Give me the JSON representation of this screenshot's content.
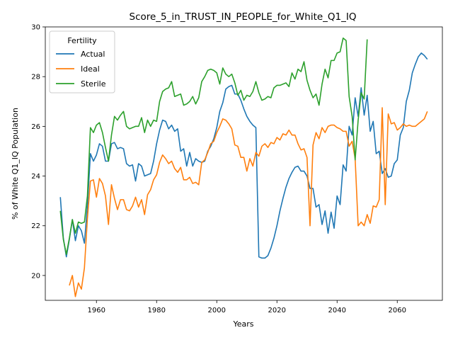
{
  "chart_data": {
    "type": "line",
    "title": "Score_5_in_TRUST_IN_PEOPLE_for_White_Q1_IQ",
    "xlabel": "Years",
    "ylabel": "% of White Q1_IQ Population",
    "xlim": [
      1943,
      2075
    ],
    "ylim": [
      19.0,
      30.0
    ],
    "xticks": [
      1960,
      1980,
      2000,
      2020,
      2040,
      2060
    ],
    "yticks": [
      20,
      22,
      24,
      26,
      28,
      30
    ],
    "grid": false,
    "legend": {
      "title": "Fertility",
      "placement": "top-left"
    },
    "series": [
      {
        "name": "Actual",
        "color": "#1f77b4",
        "x": [
          1948,
          1949,
          1950,
          1951,
          1952,
          1953,
          1954,
          1955,
          1956,
          1957,
          1958,
          1959,
          1960,
          1961,
          1962,
          1963,
          1964,
          1965,
          1966,
          1967,
          1968,
          1969,
          1970,
          1971,
          1972,
          1973,
          1974,
          1975,
          1976,
          1977,
          1978,
          1979,
          1980,
          1981,
          1982,
          1983,
          1984,
          1985,
          1986,
          1987,
          1988,
          1989,
          1990,
          1991,
          1992,
          1993,
          1994,
          1995,
          1996,
          1997,
          1998,
          1999,
          2000,
          2001,
          2002,
          2003,
          2004,
          2005,
          2006,
          2007,
          2008,
          2009,
          2010,
          2011,
          2012,
          2013,
          2014,
          2015,
          2016,
          2017,
          2018,
          2019,
          2020,
          2021,
          2022,
          2023,
          2024,
          2025,
          2026,
          2027,
          2028,
          2029,
          2030,
          2031,
          2032,
          2033,
          2034,
          2035,
          2036,
          2037,
          2038,
          2039,
          2040,
          2041,
          2042,
          2043,
          2044,
          2045,
          2046,
          2047,
          2048,
          2049,
          2050,
          2051,
          2052,
          2053,
          2054,
          2055,
          2056,
          2057,
          2058,
          2059,
          2060,
          2061,
          2062,
          2063,
          2064,
          2065,
          2066,
          2067,
          2068,
          2069,
          2070
        ],
        "values": [
          23.15,
          21.5,
          20.75,
          21.45,
          22.25,
          21.4,
          22.0,
          21.8,
          21.3,
          22.8,
          24.9,
          24.6,
          24.85,
          25.3,
          25.2,
          24.6,
          24.6,
          25.3,
          25.35,
          25.1,
          25.15,
          25.1,
          24.5,
          24.4,
          24.45,
          23.8,
          24.5,
          24.4,
          24.0,
          24.05,
          24.1,
          24.6,
          25.3,
          25.85,
          26.25,
          26.2,
          25.9,
          26.05,
          25.8,
          25.9,
          25.0,
          25.1,
          24.4,
          24.95,
          24.4,
          24.7,
          24.6,
          24.55,
          24.6,
          25.0,
          25.2,
          25.5,
          25.95,
          26.6,
          26.95,
          27.5,
          27.6,
          27.65,
          27.3,
          27.3,
          27.05,
          26.7,
          26.4,
          26.2,
          26.05,
          25.95,
          20.75,
          20.7,
          20.7,
          20.8,
          21.1,
          21.5,
          22.0,
          22.6,
          23.1,
          23.55,
          23.9,
          24.15,
          24.35,
          24.4,
          24.2,
          24.2,
          24.0,
          23.5,
          23.5,
          22.75,
          22.85,
          22.05,
          22.6,
          21.7,
          22.55,
          21.9,
          23.2,
          22.85,
          24.45,
          24.2,
          26.0,
          25.65,
          27.15,
          26.4,
          27.55,
          26.45,
          27.25,
          25.8,
          26.2,
          24.9,
          25.0,
          24.1,
          24.3,
          23.95,
          24.0,
          24.5,
          24.65,
          25.65,
          25.95,
          27.0,
          27.45,
          28.15,
          28.5,
          28.8,
          28.95,
          28.85,
          28.7
        ]
      },
      {
        "name": "Ideal",
        "color": "#ff7f0e",
        "x": [
          1951,
          1952,
          1953,
          1954,
          1955,
          1956,
          1957,
          1958,
          1959,
          1960,
          1961,
          1962,
          1963,
          1964,
          1965,
          1966,
          1967,
          1968,
          1969,
          1970,
          1971,
          1972,
          1973,
          1974,
          1975,
          1976,
          1977,
          1978,
          1979,
          1980,
          1981,
          1982,
          1983,
          1984,
          1985,
          1986,
          1987,
          1988,
          1989,
          1990,
          1991,
          1992,
          1993,
          1994,
          1995,
          1996,
          1997,
          1998,
          1999,
          2000,
          2001,
          2002,
          2003,
          2004,
          2005,
          2006,
          2007,
          2008,
          2009,
          2010,
          2011,
          2012,
          2013,
          2014,
          2015,
          2016,
          2017,
          2018,
          2019,
          2020,
          2021,
          2022,
          2023,
          2024,
          2025,
          2026,
          2027,
          2028,
          2029,
          2030,
          2031,
          2032,
          2033,
          2034,
          2035,
          2036,
          2037,
          2038,
          2039,
          2040,
          2041,
          2042,
          2043,
          2044,
          2045,
          2046,
          2047,
          2048,
          2049,
          2050,
          2051,
          2052,
          2053,
          2054,
          2055,
          2056,
          2057,
          2058,
          2059,
          2060,
          2061,
          2062,
          2063,
          2064,
          2065,
          2066,
          2067,
          2068,
          2069,
          2070
        ],
        "values": [
          19.6,
          20.0,
          19.15,
          19.7,
          19.45,
          20.3,
          22.3,
          23.8,
          23.85,
          23.15,
          23.9,
          23.7,
          23.2,
          22.05,
          23.65,
          23.1,
          22.65,
          23.05,
          23.05,
          22.65,
          22.6,
          22.8,
          23.15,
          22.75,
          23.05,
          22.45,
          23.25,
          23.45,
          23.85,
          24.05,
          24.55,
          24.85,
          24.7,
          24.5,
          24.6,
          24.3,
          24.15,
          24.35,
          23.85,
          23.85,
          23.95,
          23.7,
          23.75,
          23.65,
          24.55,
          24.65,
          24.95,
          25.3,
          25.4,
          25.75,
          26.0,
          26.3,
          26.25,
          26.1,
          25.9,
          25.25,
          25.2,
          24.75,
          24.75,
          24.2,
          24.7,
          24.4,
          24.95,
          24.8,
          25.2,
          25.3,
          25.15,
          25.35,
          25.3,
          25.55,
          25.45,
          25.7,
          25.65,
          25.85,
          25.65,
          25.65,
          25.3,
          25.05,
          25.1,
          24.75,
          22.0,
          25.25,
          25.75,
          25.5,
          25.95,
          25.75,
          26.0,
          26.05,
          26.05,
          25.95,
          25.9,
          25.8,
          25.8,
          25.2,
          25.4,
          24.7,
          22.0,
          22.15,
          22.0,
          22.45,
          22.1,
          22.8,
          22.75,
          23.05,
          26.75,
          22.85,
          26.5,
          26.1,
          26.15,
          25.85,
          25.95,
          26.1,
          26.0,
          26.05,
          26.0,
          26.0,
          26.1,
          26.2,
          26.3,
          26.6
        ]
      },
      {
        "name": "Sterile",
        "color": "#2ca02c",
        "x": [
          1948,
          1949,
          1950,
          1951,
          1952,
          1953,
          1954,
          1955,
          1956,
          1957,
          1958,
          1959,
          1960,
          1961,
          1962,
          1963,
          1964,
          1965,
          1966,
          1967,
          1968,
          1969,
          1970,
          1971,
          1972,
          1973,
          1974,
          1975,
          1976,
          1977,
          1978,
          1979,
          1980,
          1981,
          1982,
          1983,
          1984,
          1985,
          1986,
          1987,
          1988,
          1989,
          1990,
          1991,
          1992,
          1993,
          1994,
          1995,
          1996,
          1997,
          1998,
          1999,
          2000,
          2001,
          2002,
          2003,
          2004,
          2005,
          2006,
          2007,
          2008,
          2009,
          2010,
          2011,
          2012,
          2013,
          2014,
          2015,
          2016,
          2017,
          2018,
          2019,
          2020,
          2021,
          2022,
          2023,
          2024,
          2025,
          2026,
          2027,
          2028,
          2029,
          2030,
          2031,
          2032,
          2033,
          2034,
          2035,
          2036,
          2037,
          2038,
          2039,
          2040,
          2041,
          2042,
          2043,
          2044,
          2045,
          2046,
          2047,
          2048,
          2049,
          2050
        ],
        "values": [
          22.6,
          21.45,
          20.85,
          21.5,
          22.25,
          21.7,
          22.15,
          22.1,
          22.15,
          23.2,
          25.95,
          25.75,
          26.05,
          26.15,
          25.75,
          25.15,
          24.6,
          25.65,
          26.4,
          26.25,
          26.45,
          26.6,
          26.0,
          25.9,
          25.95,
          26.0,
          26.0,
          26.35,
          25.75,
          26.25,
          26.0,
          26.25,
          26.2,
          27.0,
          27.4,
          27.5,
          27.55,
          27.8,
          27.2,
          27.25,
          27.3,
          26.85,
          26.9,
          27.0,
          27.2,
          26.9,
          27.15,
          27.8,
          28.0,
          28.25,
          28.3,
          28.25,
          28.15,
          27.7,
          28.35,
          28.1,
          28.0,
          28.1,
          27.75,
          27.25,
          27.45,
          27.05,
          27.25,
          27.2,
          27.4,
          27.8,
          27.35,
          27.05,
          27.1,
          27.2,
          27.15,
          27.55,
          27.65,
          27.65,
          27.7,
          27.75,
          27.6,
          28.15,
          27.9,
          28.3,
          28.2,
          28.6,
          27.85,
          27.45,
          27.15,
          27.3,
          26.85,
          27.7,
          28.3,
          27.95,
          28.65,
          28.65,
          28.95,
          29.0,
          29.55,
          29.45,
          27.2,
          26.4,
          24.65,
          26.25,
          27.35,
          27.1,
          29.5
        ]
      }
    ]
  }
}
